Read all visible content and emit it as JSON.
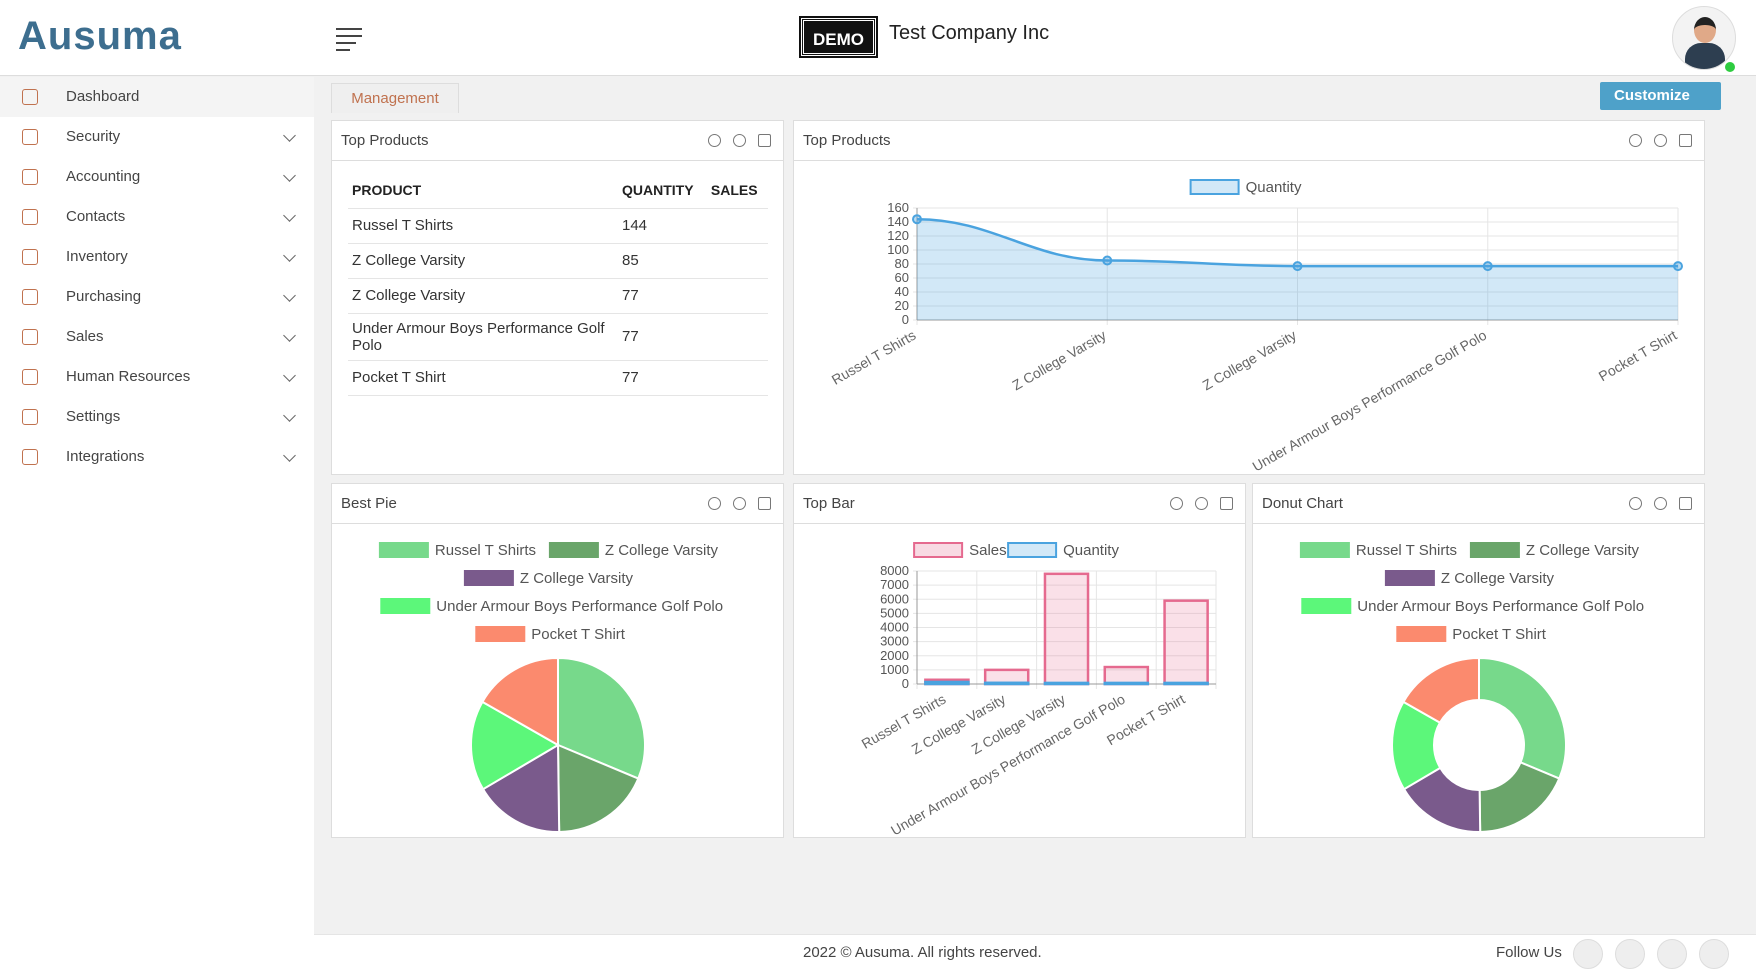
{
  "header": {
    "logo": "Ausuma",
    "badge": "DEMO",
    "company": "Test Company Inc"
  },
  "sidebar": [
    "Dashboard",
    "Security",
    "Accounting",
    "Contacts",
    "Inventory",
    "Purchasing",
    "Sales",
    "Human Resources",
    "Settings",
    "Integrations"
  ],
  "tab": "Management",
  "customize": "Customize",
  "table_widget": {
    "title": "Top Products",
    "columns": [
      "PRODUCT",
      "QUANTITY",
      "SALES"
    ],
    "rows": [
      [
        "Russel T Shirts",
        "144"
      ],
      [
        "Z College Varsity",
        "85"
      ],
      [
        "Z College Varsity",
        "77"
      ],
      [
        "Under Armour Boys Performance Golf Polo",
        "77"
      ],
      [
        "Pocket T Shirt",
        "77"
      ]
    ]
  },
  "chart_data": [
    {
      "type": "line",
      "title": "Top Products",
      "categories": [
        "Russel T Shirts",
        "Z College Varsity",
        "Z College Varsity",
        "Under Armour Boys Performance Golf Polo",
        "Pocket T Shirt"
      ],
      "series": [
        {
          "name": "Quantity",
          "color": "#4aa3df",
          "values": [
            144,
            85,
            77,
            77,
            77
          ]
        }
      ],
      "ylim": [
        0,
        160
      ],
      "yticks": [
        0,
        20,
        40,
        60,
        80,
        100,
        120,
        140,
        160
      ],
      "grid": true
    },
    {
      "type": "pie",
      "title": "Best Pie",
      "categories": [
        "Russel T Shirts",
        "Z College Varsity",
        "Z College Varsity",
        "Under Armour Boys Performance Golf Polo",
        "Pocket T Shirt"
      ],
      "values": [
        144,
        85,
        77,
        77,
        77
      ],
      "colors": [
        "#77d98b",
        "#6aa56a",
        "#7a5a8c",
        "#5cf77a",
        "#fb8a6e"
      ]
    },
    {
      "type": "bar",
      "title": "Top Bar",
      "categories": [
        "Russel T Shirts",
        "Z College Varsity",
        "Z College Varsity",
        "Under Armour Boys Performance Golf Polo",
        "Pocket T Shirt"
      ],
      "series": [
        {
          "name": "Sales",
          "color": "#e56a8f",
          "values": [
            300,
            1000,
            7800,
            1200,
            5900
          ]
        },
        {
          "name": "Quantity",
          "color": "#4aa3df",
          "values": [
            144,
            85,
            77,
            77,
            77
          ]
        }
      ],
      "ylim": [
        0,
        8000
      ],
      "yticks": [
        0,
        1000,
        2000,
        3000,
        4000,
        5000,
        6000,
        7000,
        8000
      ],
      "grid": true
    },
    {
      "type": "donut",
      "title": "Donut Chart",
      "categories": [
        "Russel T Shirts",
        "Z College Varsity",
        "Z College Varsity",
        "Under Armour Boys Performance Golf Polo",
        "Pocket T Shirt"
      ],
      "values": [
        144,
        85,
        77,
        77,
        77
      ],
      "colors": [
        "#77d98b",
        "#6aa56a",
        "#7a5a8c",
        "#5cf77a",
        "#fb8a6e"
      ]
    }
  ],
  "footer": {
    "copyright": "2022 © Ausuma. All rights reserved.",
    "follow": "Follow Us"
  }
}
